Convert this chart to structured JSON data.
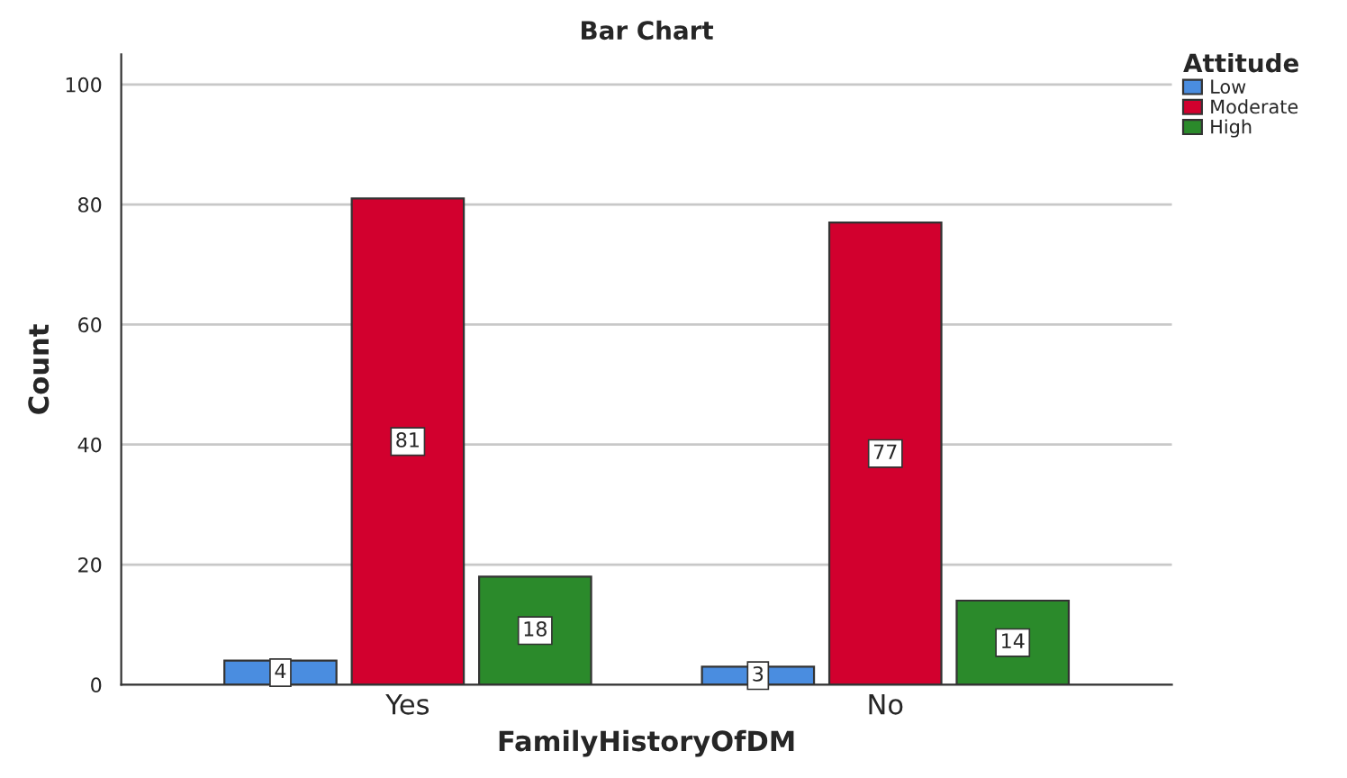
{
  "chart_data": {
    "type": "bar",
    "title": "Bar Chart",
    "xlabel": "FamilyHistoryOfDM",
    "ylabel": "Count",
    "legend_title": "Attitude",
    "categories": [
      "Yes",
      "No"
    ],
    "series": [
      {
        "name": "Low",
        "color": "#4a8de0",
        "values": [
          4,
          3
        ]
      },
      {
        "name": "Moderate",
        "color": "#d2002e",
        "values": [
          81,
          77
        ]
      },
      {
        "name": "High",
        "color": "#2b8a2b",
        "values": [
          18,
          14
        ]
      }
    ],
    "ylim": [
      0,
      105
    ],
    "yticks": [
      0,
      20,
      40,
      60,
      80,
      100
    ],
    "grid": "y",
    "legend": "top right",
    "data_labels": true
  }
}
